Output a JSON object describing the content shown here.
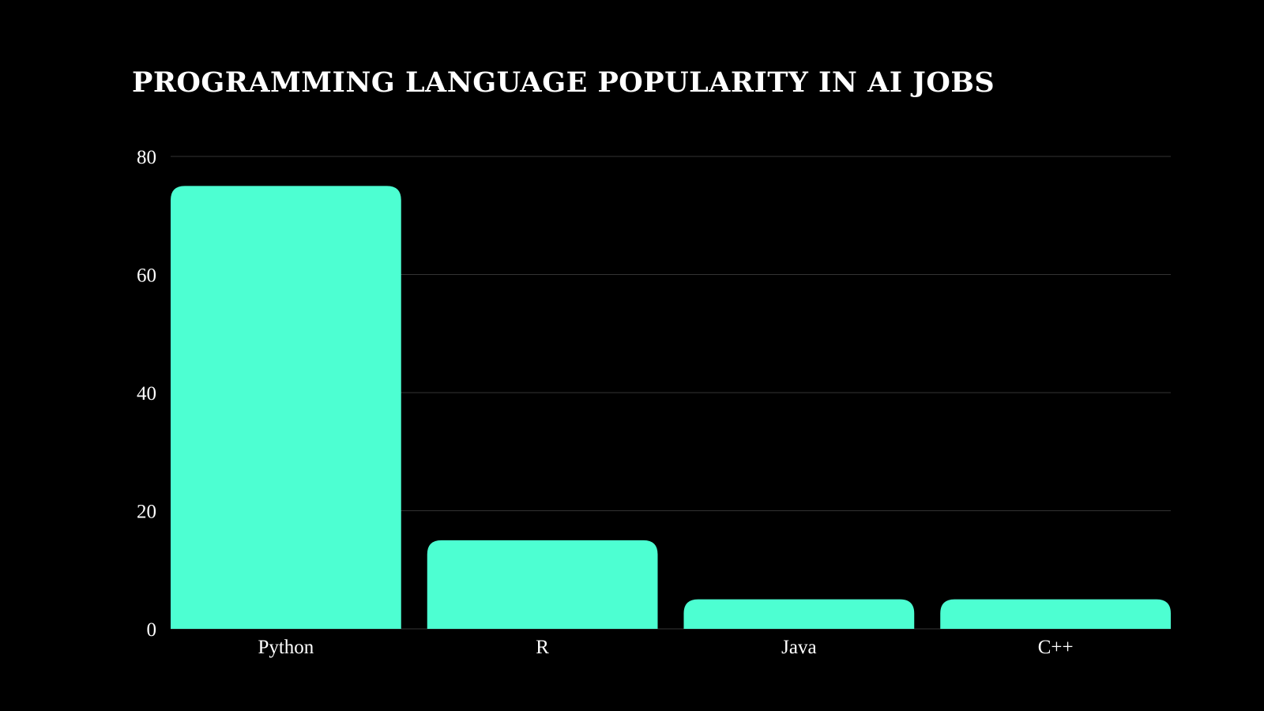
{
  "chart_data": {
    "type": "bar",
    "title": "PROGRAMMING LANGUAGE POPULARITY IN AI JOBS",
    "xlabel": "",
    "ylabel": "",
    "categories": [
      "Python",
      "R",
      "Java",
      "C++"
    ],
    "values": [
      75,
      15,
      5,
      5
    ],
    "ylim": [
      0,
      80
    ],
    "yticks": [
      "0",
      "20",
      "40",
      "60",
      "80"
    ],
    "grid": true,
    "bar_color": "#4dffd2",
    "background_color": "#000000",
    "text_color": "#ffffff",
    "grid_color": "#333333"
  }
}
